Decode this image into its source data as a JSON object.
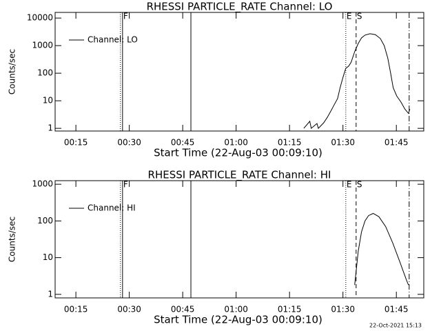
{
  "chart_data": [
    {
      "type": "line",
      "title": "RHESSI PARTICLE_RATE Channel: LO",
      "xlabel": "Start Time (22-Aug-03 00:09:10)",
      "ylabel": "Counts/sec",
      "log_y": true,
      "xlim": [
        9.17,
        112.7
      ],
      "ylim": [
        0.8,
        16000
      ],
      "xticks": [
        {
          "value": 15,
          "label": "00:15"
        },
        {
          "value": 30,
          "label": "00:30"
        },
        {
          "value": 45,
          "label": "00:45"
        },
        {
          "value": 60,
          "label": "01:00"
        },
        {
          "value": 75,
          "label": "01:15"
        },
        {
          "value": 90,
          "label": "01:30"
        },
        {
          "value": 105,
          "label": "01:45"
        }
      ],
      "yticks": [
        1,
        10,
        100,
        1000,
        10000
      ],
      "vlines": [
        {
          "x": 27.5,
          "style": "dotted"
        },
        {
          "x": 28.1,
          "style": "solid"
        },
        {
          "x": 47.3,
          "style": "solid"
        },
        {
          "x": 90.8,
          "style": "dotted"
        },
        {
          "x": 93.7,
          "style": "dashed"
        },
        {
          "x": 108.6,
          "style": "dashdot"
        }
      ],
      "annotations": [
        {
          "text": "F",
          "x": 28.1
        },
        {
          "text": "E",
          "x": 90.8
        },
        {
          "text": "S",
          "x": 93.7
        }
      ],
      "legend": "upper left",
      "series": [
        {
          "name": "Channel: LO",
          "color": "#000000",
          "x": [
            79.0,
            80.7,
            81.1,
            82.7,
            83.1,
            84.6,
            85.6,
            86.5,
            87.5,
            88.5,
            89.2,
            90.0,
            90.8,
            91.6,
            92.3,
            93.3,
            94.3,
            95.2,
            96.2,
            97.6,
            99.1,
            100.5,
            101.6,
            102.6,
            103.4,
            104.1,
            105.1,
            106.3,
            107.4,
            108.4,
            108.8
          ],
          "values": [
            1.0,
            1.8,
            1.0,
            1.5,
            1.0,
            1.6,
            2.5,
            4,
            7,
            12,
            30,
            70,
            150,
            180,
            250,
            600,
            1200,
            1900,
            2400,
            2700,
            2500,
            1800,
            1000,
            350,
            100,
            30,
            15,
            9,
            5,
            3.5,
            5
          ]
        }
      ]
    },
    {
      "type": "line",
      "title": "RHESSI PARTICLE_RATE Channel: HI",
      "xlabel": "Start Time (22-Aug-03 00:09:10)",
      "ylabel": "Counts/sec",
      "log_y": true,
      "xlim": [
        9.17,
        112.7
      ],
      "ylim": [
        0.8,
        1250
      ],
      "xticks": [
        {
          "value": 15,
          "label": "00:15"
        },
        {
          "value": 30,
          "label": "00:30"
        },
        {
          "value": 45,
          "label": "00:45"
        },
        {
          "value": 60,
          "label": "01:00"
        },
        {
          "value": 75,
          "label": "01:15"
        },
        {
          "value": 90,
          "label": "01:30"
        },
        {
          "value": 105,
          "label": "01:45"
        }
      ],
      "yticks": [
        1,
        10,
        100,
        1000
      ],
      "vlines": [
        {
          "x": 27.5,
          "style": "dotted"
        },
        {
          "x": 28.1,
          "style": "solid"
        },
        {
          "x": 47.3,
          "style": "solid"
        },
        {
          "x": 90.8,
          "style": "dotted"
        },
        {
          "x": 93.7,
          "style": "dashed"
        },
        {
          "x": 108.6,
          "style": "dashdot"
        }
      ],
      "annotations": [
        {
          "text": "F",
          "x": 28.1
        },
        {
          "text": "E",
          "x": 90.8
        },
        {
          "text": "S",
          "x": 93.7
        }
      ],
      "legend": "upper left",
      "series": [
        {
          "name": "Channel: HI",
          "color": "#000000",
          "x": [
            93.3,
            94.3,
            95.2,
            96.2,
            97.2,
            98.5,
            100.1,
            102.0,
            104.0,
            105.9,
            107.8,
            108.4
          ],
          "values": [
            1.8,
            15,
            50,
            100,
            140,
            160,
            130,
            70,
            25,
            8,
            2.5,
            1.8
          ]
        }
      ]
    }
  ],
  "footer": "22-Oct-2021 15:13"
}
